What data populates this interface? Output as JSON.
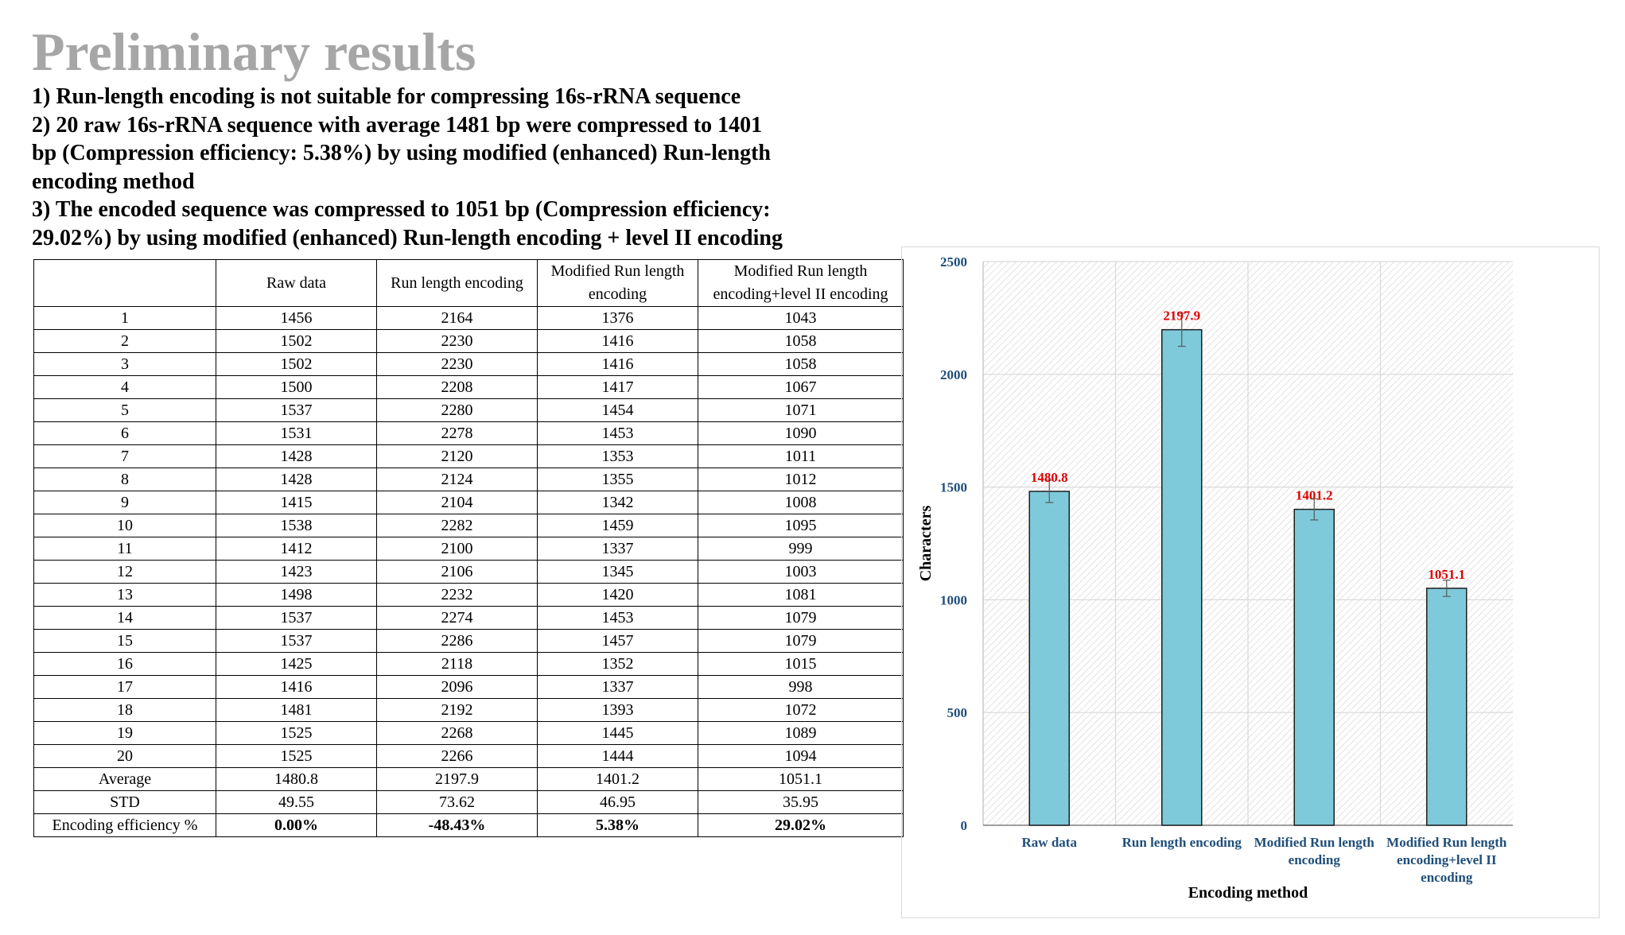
{
  "slide": {
    "title": "Preliminary results",
    "points": [
      "1) Run-length encoding is not suitable for compressing 16s-rRNA sequence",
      "2) 20 raw 16s-rRNA sequence with average 1481 bp were compressed to 1401",
      "bp (Compression efficiency: 5.38%) by using modified (enhanced) Run-length",
      "encoding method",
      "3) The encoded sequence was compressed to 1051 bp (Compression efficiency:",
      "29.02%) by using modified (enhanced) Run-length encoding + level II encoding"
    ]
  },
  "table": {
    "headers": [
      "",
      "Raw data",
      "Run length encoding",
      "Modified Run length\nencoding",
      "Modified Run length\nencoding+level II encoding"
    ],
    "rows": [
      [
        "1",
        "1456",
        "2164",
        "1376",
        "1043"
      ],
      [
        "2",
        "1502",
        "2230",
        "1416",
        "1058"
      ],
      [
        "3",
        "1502",
        "2230",
        "1416",
        "1058"
      ],
      [
        "4",
        "1500",
        "2208",
        "1417",
        "1067"
      ],
      [
        "5",
        "1537",
        "2280",
        "1454",
        "1071"
      ],
      [
        "6",
        "1531",
        "2278",
        "1453",
        "1090"
      ],
      [
        "7",
        "1428",
        "2120",
        "1353",
        "1011"
      ],
      [
        "8",
        "1428",
        "2124",
        "1355",
        "1012"
      ],
      [
        "9",
        "1415",
        "2104",
        "1342",
        "1008"
      ],
      [
        "10",
        "1538",
        "2282",
        "1459",
        "1095"
      ],
      [
        "11",
        "1412",
        "2100",
        "1337",
        "999"
      ],
      [
        "12",
        "1423",
        "2106",
        "1345",
        "1003"
      ],
      [
        "13",
        "1498",
        "2232",
        "1420",
        "1081"
      ],
      [
        "14",
        "1537",
        "2274",
        "1453",
        "1079"
      ],
      [
        "15",
        "1537",
        "2286",
        "1457",
        "1079"
      ],
      [
        "16",
        "1425",
        "2118",
        "1352",
        "1015"
      ],
      [
        "17",
        "1416",
        "2096",
        "1337",
        "998"
      ],
      [
        "18",
        "1481",
        "2192",
        "1393",
        "1072"
      ],
      [
        "19",
        "1525",
        "2268",
        "1445",
        "1089"
      ],
      [
        "20",
        "1525",
        "2266",
        "1444",
        "1094"
      ]
    ],
    "summary_rows": [
      [
        "Average",
        "1480.8",
        "2197.9",
        "1401.2",
        "1051.1"
      ],
      [
        "STD",
        "49.55",
        "73.62",
        "46.95",
        "35.95"
      ],
      [
        "Encoding efficiency %",
        "0.00%",
        "-48.43%",
        "5.38%",
        "29.02%"
      ]
    ]
  },
  "chart_data": {
    "type": "bar",
    "categories": [
      "Raw data",
      "Run length encoding",
      "Modified Run length\nencoding",
      "Modified Run length\nencoding+level II\nencoding"
    ],
    "values": [
      1480.8,
      2197.9,
      1401.2,
      1051.1
    ],
    "value_labels": [
      "1480.8",
      "2197.9",
      "1401.2",
      "1051.1"
    ],
    "error": [
      49.55,
      73.62,
      46.95,
      35.95
    ],
    "xlabel": "Encoding method",
    "ylabel": "Characters",
    "ylim": [
      0,
      2500
    ],
    "yticks": [
      0,
      500,
      1000,
      1500,
      2000,
      2500
    ],
    "grid": true,
    "colors": {
      "bar_fill": "#7ecadb",
      "bar_stroke": "#1f1f1f",
      "value_label": "#e00000",
      "tick_label": "#1f4e79",
      "axis_title": "#000000",
      "grid": "#d9d9d9"
    }
  }
}
